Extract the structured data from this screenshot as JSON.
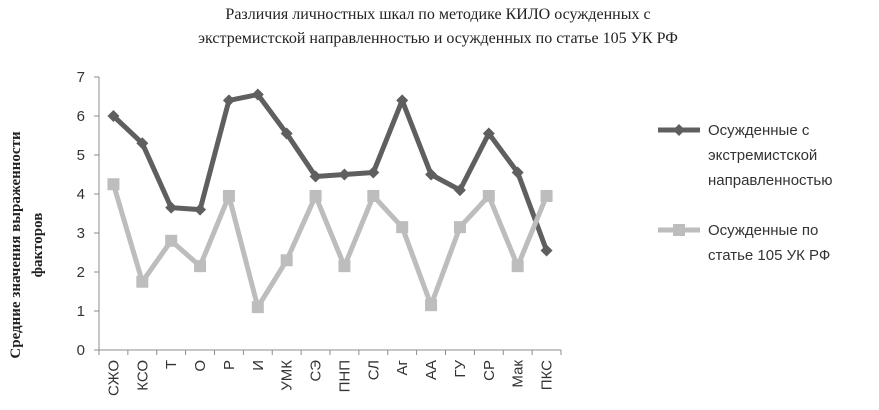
{
  "chart_data": {
    "type": "line",
    "title": [
      "Различия личностных шкал по методике КИЛО осужденных с",
      "экстремистской направленностью и осужденных по статье 105  УК РФ"
    ],
    "ylabel": [
      "Средние значения выраженности",
      "факторов"
    ],
    "xlabel": "",
    "categories": [
      "СЖО",
      "КСО",
      "Т",
      "О",
      "Р",
      "И",
      "УМК",
      "СЭ",
      "ПНП",
      "СЛ",
      "Аг",
      "АА",
      "ГУ",
      "СР",
      "Мак",
      "ПКС"
    ],
    "ylim": [
      0,
      7
    ],
    "yticks": [
      0,
      1,
      2,
      3,
      4,
      5,
      6,
      7
    ],
    "grid": false,
    "legend_position": "right",
    "series": [
      {
        "name": [
          "Осужденные с",
          "экстремистской",
          "направленностью"
        ],
        "color": "#5f5f5f",
        "marker": "diamond",
        "values": [
          6.0,
          5.3,
          3.65,
          3.6,
          6.4,
          6.55,
          5.55,
          4.45,
          4.5,
          4.55,
          6.4,
          4.5,
          4.1,
          5.55,
          4.55,
          2.55
        ]
      },
      {
        "name": [
          "Осужденные по",
          "статье 105 УК РФ"
        ],
        "color": "#bdbdbd",
        "marker": "square",
        "values": [
          4.25,
          1.75,
          2.8,
          2.15,
          3.95,
          1.1,
          2.3,
          3.95,
          2.15,
          3.95,
          3.15,
          1.15,
          3.15,
          3.95,
          2.15,
          3.95
        ]
      }
    ]
  }
}
